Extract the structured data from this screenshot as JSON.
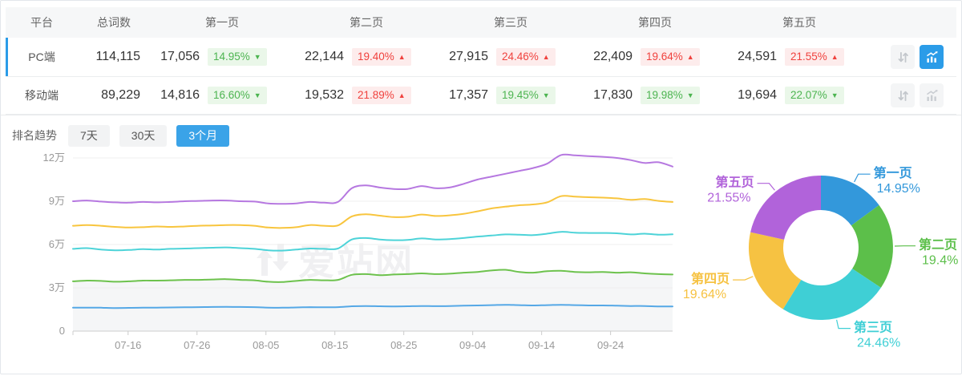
{
  "table": {
    "headers": {
      "platform": "平台",
      "total": "总词数",
      "pages": [
        "第一页",
        "第二页",
        "第三页",
        "第四页",
        "第五页"
      ]
    },
    "rows": [
      {
        "platform": "PC端",
        "total": "114,115",
        "selected": true,
        "chart_active": true,
        "pages": [
          {
            "value": "17,056",
            "pct": "14.95%",
            "dir": "down"
          },
          {
            "value": "22,144",
            "pct": "19.40%",
            "dir": "up"
          },
          {
            "value": "27,915",
            "pct": "24.46%",
            "dir": "up"
          },
          {
            "value": "22,409",
            "pct": "19.64%",
            "dir": "up"
          },
          {
            "value": "24,591",
            "pct": "21.55%",
            "dir": "up"
          }
        ]
      },
      {
        "platform": "移动端",
        "total": "89,229",
        "selected": false,
        "chart_active": false,
        "pages": [
          {
            "value": "14,816",
            "pct": "16.60%",
            "dir": "down"
          },
          {
            "value": "19,532",
            "pct": "21.89%",
            "dir": "up"
          },
          {
            "value": "17,357",
            "pct": "19.45%",
            "dir": "down"
          },
          {
            "value": "17,830",
            "pct": "19.98%",
            "dir": "down"
          },
          {
            "value": "19,694",
            "pct": "22.07%",
            "dir": "down"
          }
        ]
      }
    ]
  },
  "trend": {
    "title": "排名趋势",
    "tabs": [
      {
        "label": "7天",
        "active": false
      },
      {
        "label": "30天",
        "active": false
      },
      {
        "label": "3个月",
        "active": true
      }
    ]
  },
  "watermark": "爱站网",
  "colors": {
    "accent_blue": "#2b9ce8",
    "tab_blue": "#3aa3e8",
    "badge_up_red": "#f0413d",
    "badge_down_green": "#4cb450",
    "grid": "#efefef",
    "axis": "#cccccc",
    "tick_text": "#999999",
    "area_fill": "#f5f6f7"
  },
  "chart_data": [
    {
      "type": "line",
      "title": "排名趋势（3个月）",
      "unit": "万",
      "note": "values are cumulative stacked totals per ranking page, unit = 10,000 keywords",
      "ylim": [
        0,
        12.5
      ],
      "yticks": [
        {
          "v": 0,
          "label": "0"
        },
        {
          "v": 3,
          "label": "3万"
        },
        {
          "v": 6,
          "label": "6万"
        },
        {
          "v": 9,
          "label": "9万"
        },
        {
          "v": 12,
          "label": "12万"
        }
      ],
      "xtick_labels": [
        "07-16",
        "07-26",
        "08-05",
        "08-15",
        "08-25",
        "09-04",
        "09-14",
        "09-24"
      ],
      "series": [
        {
          "name": "第一页",
          "color": "#55a8e6",
          "fill": false,
          "values": [
            1.62,
            1.63,
            1.62,
            1.6,
            1.61,
            1.62,
            1.63,
            1.64,
            1.65,
            1.66,
            1.67,
            1.68,
            1.67,
            1.66,
            1.63,
            1.62,
            1.64,
            1.66,
            1.65,
            1.66,
            1.72,
            1.74,
            1.72,
            1.71,
            1.72,
            1.74,
            1.73,
            1.74,
            1.76,
            1.78,
            1.8,
            1.82,
            1.8,
            1.78,
            1.8,
            1.82,
            1.8,
            1.78,
            1.78,
            1.76,
            1.74,
            1.74,
            1.71,
            1.71
          ]
        },
        {
          "name": "第二页",
          "color": "#6dc24d",
          "fill": true,
          "values": [
            3.45,
            3.5,
            3.48,
            3.42,
            3.45,
            3.5,
            3.5,
            3.52,
            3.55,
            3.55,
            3.58,
            3.6,
            3.55,
            3.52,
            3.42,
            3.4,
            3.48,
            3.55,
            3.52,
            3.55,
            3.9,
            3.95,
            3.88,
            3.92,
            3.95,
            4.0,
            3.95,
            3.98,
            4.05,
            4.1,
            4.2,
            4.25,
            4.1,
            4.05,
            4.15,
            4.18,
            4.1,
            4.08,
            4.1,
            4.05,
            4.08,
            4.0,
            3.95,
            3.92
          ]
        },
        {
          "name": "第三页",
          "color": "#4dd3d8",
          "fill": false,
          "values": [
            5.7,
            5.75,
            5.65,
            5.6,
            5.62,
            5.68,
            5.65,
            5.7,
            5.72,
            5.75,
            5.78,
            5.8,
            5.75,
            5.7,
            5.6,
            5.58,
            5.65,
            5.72,
            5.7,
            5.72,
            6.35,
            6.45,
            6.35,
            6.3,
            6.32,
            6.42,
            6.35,
            6.38,
            6.45,
            6.55,
            6.62,
            6.7,
            6.68,
            6.65,
            6.75,
            6.88,
            6.82,
            6.8,
            6.8,
            6.78,
            6.7,
            6.75,
            6.68,
            6.71
          ]
        },
        {
          "name": "第四页",
          "color": "#f8c53e",
          "fill": false,
          "values": [
            7.3,
            7.35,
            7.3,
            7.22,
            7.18,
            7.2,
            7.25,
            7.22,
            7.25,
            7.3,
            7.32,
            7.35,
            7.35,
            7.3,
            7.18,
            7.15,
            7.2,
            7.35,
            7.3,
            7.32,
            7.95,
            8.1,
            8.0,
            7.9,
            7.92,
            8.08,
            7.98,
            8.02,
            8.12,
            8.3,
            8.5,
            8.62,
            8.72,
            8.78,
            8.92,
            9.35,
            9.32,
            9.28,
            9.25,
            9.2,
            9.1,
            9.15,
            9.02,
            8.95
          ]
        },
        {
          "name": "第五页",
          "color": "#b678e0",
          "fill": false,
          "values": [
            9.0,
            9.05,
            8.98,
            8.92,
            8.9,
            8.95,
            8.92,
            8.95,
            9.0,
            9.02,
            9.05,
            9.05,
            9.0,
            8.98,
            8.85,
            8.82,
            8.85,
            8.95,
            8.9,
            8.95,
            9.9,
            10.1,
            9.95,
            9.85,
            9.85,
            10.05,
            9.9,
            9.95,
            10.2,
            10.5,
            10.7,
            10.9,
            11.1,
            11.3,
            11.6,
            12.2,
            12.18,
            12.12,
            12.08,
            12.0,
            11.85,
            11.65,
            11.7,
            11.4
          ]
        }
      ]
    },
    {
      "type": "pie",
      "title": "页面排名占比",
      "items": [
        {
          "label": "第一页",
          "value": 14.95,
          "display": "14.95%",
          "color": "#3398db"
        },
        {
          "label": "第二页",
          "value": 19.4,
          "display": "19.4%",
          "color": "#5cbf4a"
        },
        {
          "label": "第三页",
          "value": 24.46,
          "display": "24.46%",
          "color": "#3fcfd5"
        },
        {
          "label": "第四页",
          "value": 19.64,
          "display": "19.64%",
          "color": "#f6c242"
        },
        {
          "label": "第五页",
          "value": 21.55,
          "display": "21.55%",
          "color": "#b163da"
        }
      ]
    }
  ]
}
